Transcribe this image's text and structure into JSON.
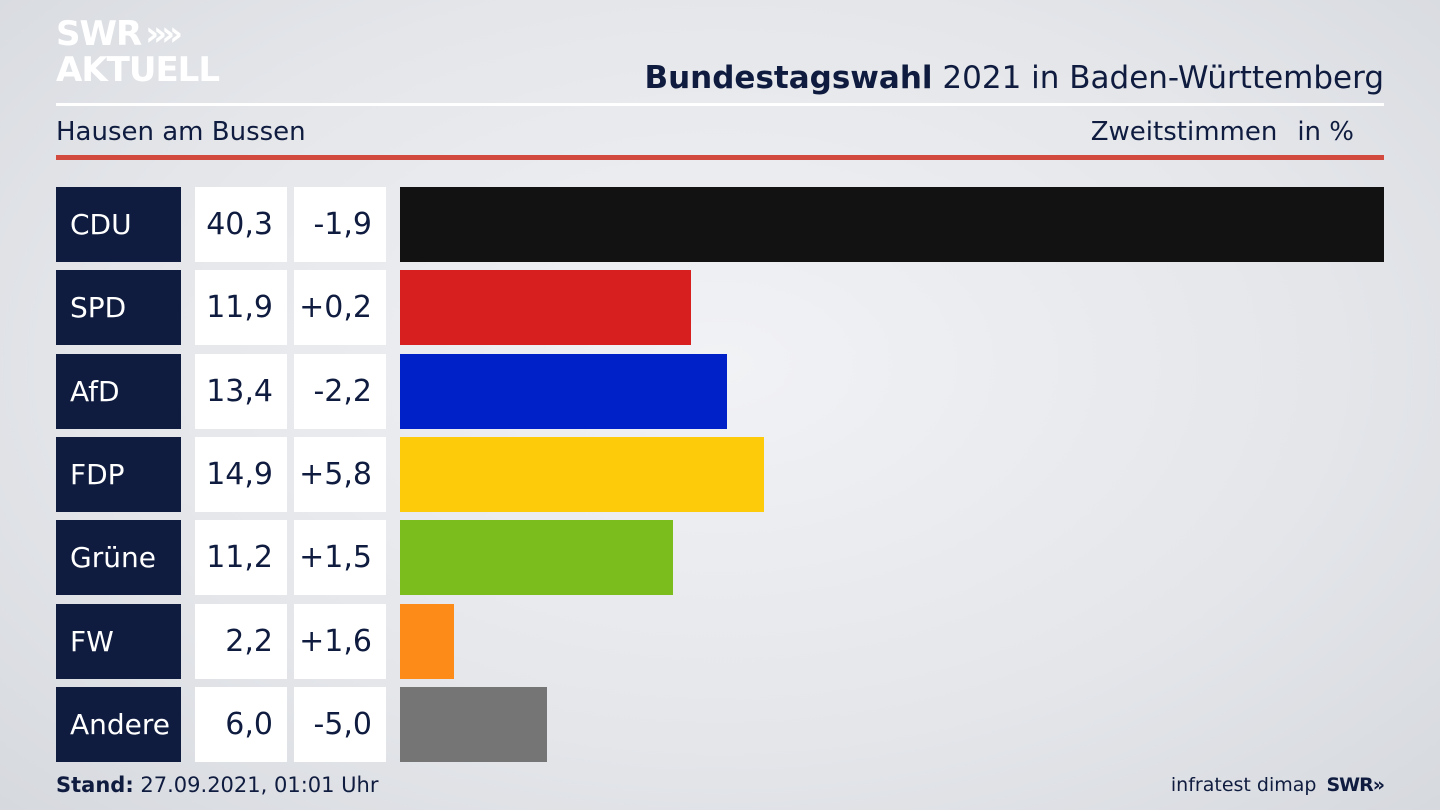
{
  "brand": {
    "line1": "SWR",
    "arrows": "»»",
    "line2": "AKTUELL",
    "footer_logo": "SWR»"
  },
  "header": {
    "title_bold": "Bundestagswahl",
    "title_rest": " 2021 in Baden-Württemberg",
    "location": "Hausen am Bussen",
    "measure": "Zweitstimmen",
    "unit": "in %"
  },
  "footer": {
    "stand_label": "Stand:",
    "stand_value": " 27.09.2021, 01:01 Uhr",
    "source": "infratest dimap"
  },
  "chart_data": {
    "type": "bar",
    "orientation": "horizontal",
    "categories": [
      "CDU",
      "SPD",
      "AfD",
      "FDP",
      "Grüne",
      "FW",
      "Andere"
    ],
    "value_labels": [
      "40,3",
      "11,9",
      "13,4",
      "14,9",
      "11,2",
      "2,2",
      "6,0"
    ],
    "diff_labels": [
      "-1,9",
      "+0,2",
      "-2,2",
      "+5,8",
      "+1,5",
      "+1,6",
      "-5,0"
    ],
    "values": [
      40.3,
      11.9,
      13.4,
      14.9,
      11.2,
      2.2,
      6.0
    ],
    "colors": [
      "#121212",
      "#d81f20",
      "#0021c7",
      "#fecb0a",
      "#7abd1c",
      "#fd8b17",
      "#757575"
    ],
    "grid": false
  }
}
